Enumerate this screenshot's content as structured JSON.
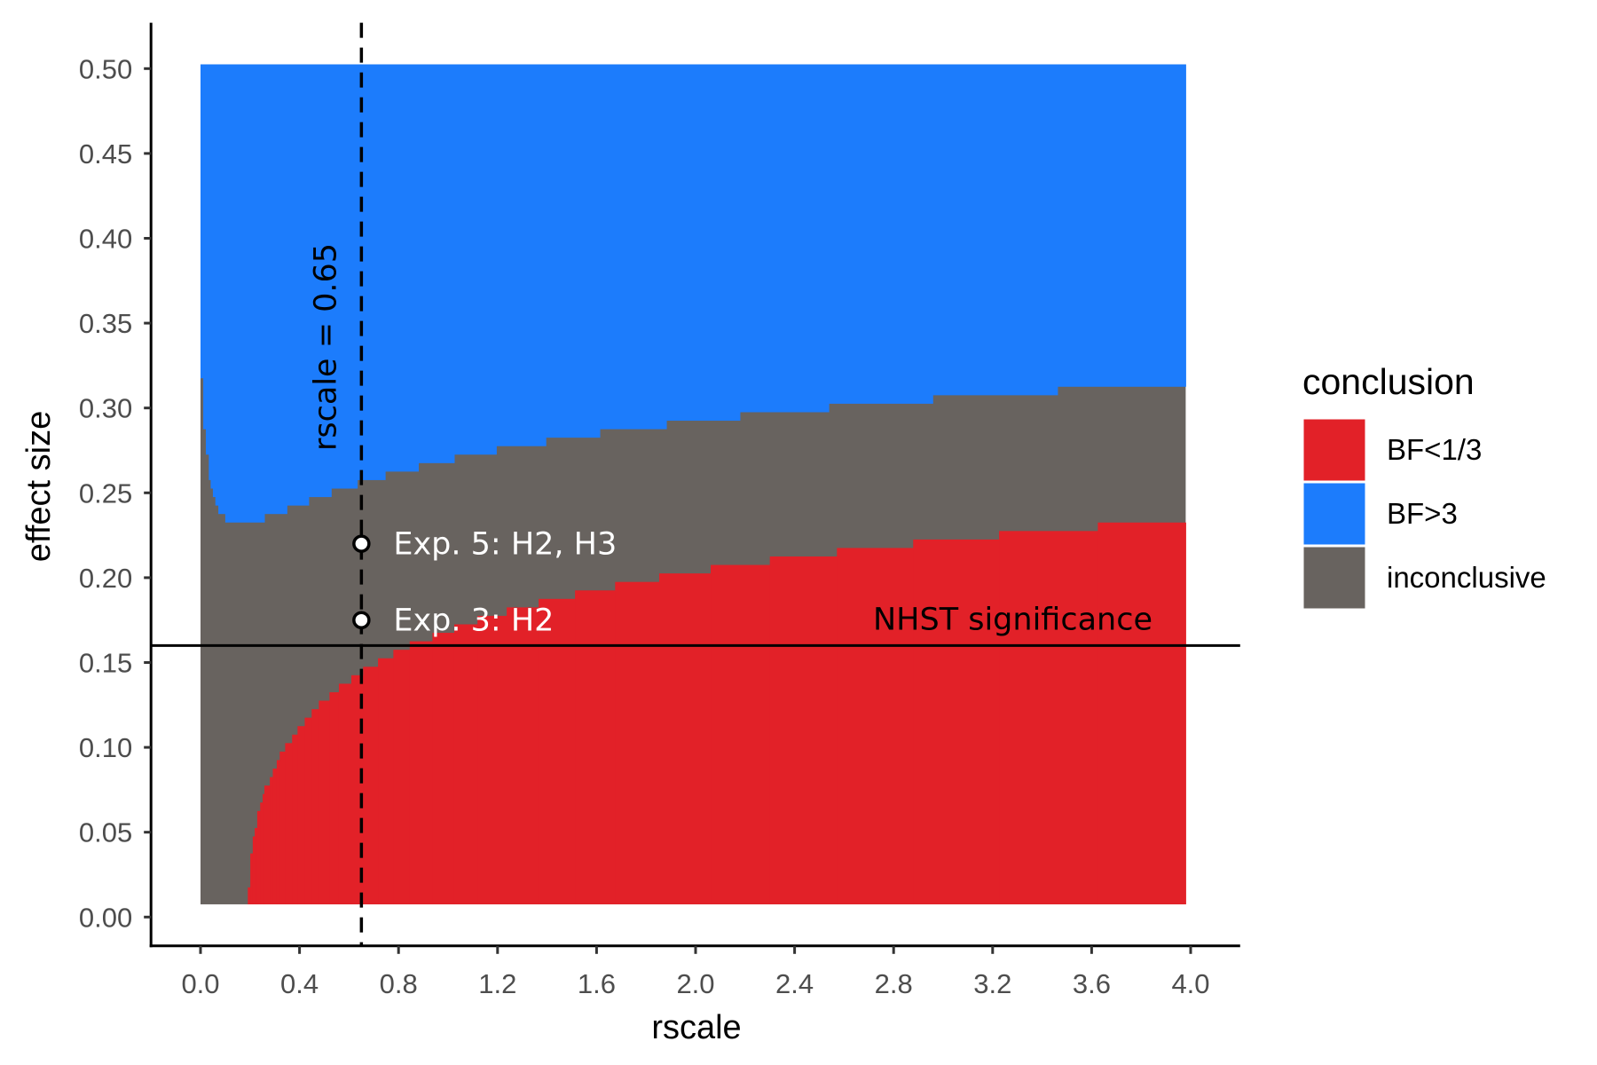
{
  "chart_data": {
    "type": "heatmap",
    "title": "",
    "xlabel": "rscale",
    "ylabel": "effect size",
    "xlim": [
      -0.2,
      4.2
    ],
    "ylim": [
      -0.017,
      0.527
    ],
    "x_ticks": [
      "0.0",
      "0.4",
      "0.8",
      "1.2",
      "1.6",
      "2.0",
      "2.4",
      "2.8",
      "3.2",
      "3.6",
      "4.0"
    ],
    "y_ticks": [
      "0.00",
      "0.05",
      "0.10",
      "0.15",
      "0.20",
      "0.25",
      "0.30",
      "0.35",
      "0.40",
      "0.45",
      "0.50"
    ],
    "grid": false,
    "tile_x_range": [
      0,
      3.98
    ],
    "tile_y_range": [
      0.01,
      0.5
    ],
    "tile_y_step": 0.005,
    "legend": {
      "title": "conclusion",
      "position": "right",
      "entries": [
        {
          "label": "BF<1/3",
          "color": "#E22128"
        },
        {
          "label": "BF>3",
          "color": "#1C7CFC"
        },
        {
          "label": "inconclusive",
          "color": "#68635F"
        }
      ]
    },
    "bf_gt_3_min_effect_size_by_rscale": [
      {
        "rscale_from": 0.0,
        "effect_size": 0.32
      },
      {
        "rscale_from": 0.011,
        "effect_size": 0.29
      },
      {
        "rscale_from": 0.0215,
        "effect_size": 0.275
      },
      {
        "rscale_from": 0.0335,
        "effect_size": 0.26
      },
      {
        "rscale_from": 0.041,
        "effect_size": 0.255
      },
      {
        "rscale_from": 0.05,
        "effect_size": 0.25
      },
      {
        "rscale_from": 0.06,
        "effect_size": 0.245
      },
      {
        "rscale_from": 0.072,
        "effect_size": 0.24
      },
      {
        "rscale_from": 0.1,
        "effect_size": 0.235
      },
      {
        "rscale_from": 0.258,
        "effect_size": 0.24
      },
      {
        "rscale_from": 0.349,
        "effect_size": 0.245
      },
      {
        "rscale_from": 0.437,
        "effect_size": 0.25
      },
      {
        "rscale_from": 0.528,
        "effect_size": 0.255
      },
      {
        "rscale_from": 0.633,
        "effect_size": 0.26
      },
      {
        "rscale_from": 0.746,
        "effect_size": 0.265
      },
      {
        "rscale_from": 0.88,
        "effect_size": 0.27
      },
      {
        "rscale_from": 1.025,
        "effect_size": 0.275
      },
      {
        "rscale_from": 1.195,
        "effect_size": 0.28
      },
      {
        "rscale_from": 1.395,
        "effect_size": 0.285
      },
      {
        "rscale_from": 1.613,
        "effect_size": 0.29
      },
      {
        "rscale_from": 1.882,
        "effect_size": 0.295
      },
      {
        "rscale_from": 2.179,
        "effect_size": 0.3
      },
      {
        "rscale_from": 2.538,
        "effect_size": 0.305
      },
      {
        "rscale_from": 2.958,
        "effect_size": 0.31
      },
      {
        "rscale_from": 3.462,
        "effect_size": 0.315
      }
    ],
    "bf_lt_1_3_max_effect_size_by_rscale": [
      {
        "rscale_from": 0.191,
        "effect_size": 0.015
      },
      {
        "rscale_from": 0.201,
        "effect_size": 0.035
      },
      {
        "rscale_from": 0.211,
        "effect_size": 0.045
      },
      {
        "rscale_from": 0.219,
        "effect_size": 0.05
      },
      {
        "rscale_from": 0.229,
        "effect_size": 0.06
      },
      {
        "rscale_from": 0.241,
        "effect_size": 0.065
      },
      {
        "rscale_from": 0.251,
        "effect_size": 0.07
      },
      {
        "rscale_from": 0.258,
        "effect_size": 0.075
      },
      {
        "rscale_from": 0.28,
        "effect_size": 0.08
      },
      {
        "rscale_from": 0.292,
        "effect_size": 0.085
      },
      {
        "rscale_from": 0.308,
        "effect_size": 0.09
      },
      {
        "rscale_from": 0.32,
        "effect_size": 0.095
      },
      {
        "rscale_from": 0.342,
        "effect_size": 0.1
      },
      {
        "rscale_from": 0.37,
        "effect_size": 0.105
      },
      {
        "rscale_from": 0.392,
        "effect_size": 0.11
      },
      {
        "rscale_from": 0.421,
        "effect_size": 0.115
      },
      {
        "rscale_from": 0.449,
        "effect_size": 0.12
      },
      {
        "rscale_from": 0.478,
        "effect_size": 0.125
      },
      {
        "rscale_from": 0.521,
        "effect_size": 0.13
      },
      {
        "rscale_from": 0.559,
        "effect_size": 0.135
      },
      {
        "rscale_from": 0.609,
        "effect_size": 0.14
      },
      {
        "rscale_from": 0.657,
        "effect_size": 0.145
      },
      {
        "rscale_from": 0.717,
        "effect_size": 0.15
      },
      {
        "rscale_from": 0.779,
        "effect_size": 0.155
      },
      {
        "rscale_from": 0.845,
        "effect_size": 0.16
      },
      {
        "rscale_from": 0.937,
        "effect_size": 0.165
      },
      {
        "rscale_from": 1.025,
        "effect_size": 0.17
      },
      {
        "rscale_from": 1.119,
        "effect_size": 0.175
      },
      {
        "rscale_from": 1.237,
        "effect_size": 0.18
      },
      {
        "rscale_from": 1.366,
        "effect_size": 0.185
      },
      {
        "rscale_from": 1.513,
        "effect_size": 0.19
      },
      {
        "rscale_from": 1.675,
        "effect_size": 0.195
      },
      {
        "rscale_from": 1.853,
        "effect_size": 0.2
      },
      {
        "rscale_from": 2.061,
        "effect_size": 0.205
      },
      {
        "rscale_from": 2.3,
        "effect_size": 0.21
      },
      {
        "rscale_from": 2.571,
        "effect_size": 0.215
      },
      {
        "rscale_from": 2.879,
        "effect_size": 0.22
      },
      {
        "rscale_from": 3.226,
        "effect_size": 0.225
      },
      {
        "rscale_from": 3.625,
        "effect_size": 0.23
      }
    ],
    "vline": {
      "rscale": 0.65,
      "label": "rscale = 0.65",
      "style": "dashed"
    },
    "hline": {
      "effect_size": 0.16,
      "label": "NHST significance"
    },
    "points": [
      {
        "rscale": 0.65,
        "effect_size": 0.22,
        "label": "Exp. 5: H2, H3"
      },
      {
        "rscale": 0.65,
        "effect_size": 0.175,
        "label": "Exp. 3: H2"
      }
    ]
  }
}
